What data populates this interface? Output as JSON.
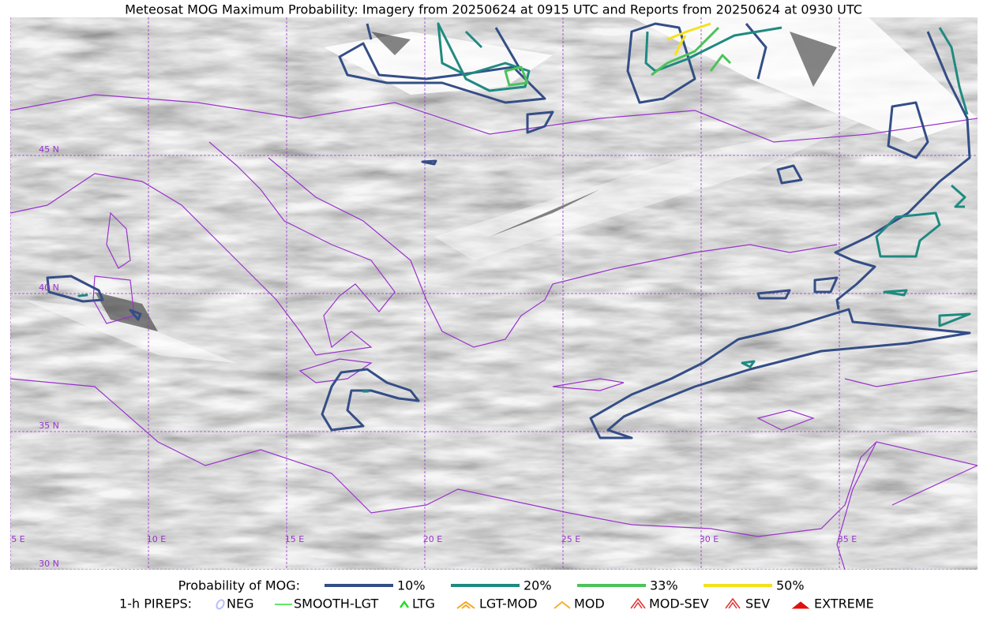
{
  "title": "Meteosat MOG Maximum Probability: Imagery from 20250624 at 0915 UTC and Reports from 20250624 at 0930 UTC",
  "map": {
    "lat_labels": [
      "45 N",
      "40 N",
      "35 N",
      "30 N"
    ],
    "lon_labels": [
      "5 E",
      "10 E",
      "15 E",
      "20 E",
      "25 E",
      "30 E",
      "35 E"
    ],
    "grid_color": "#9933cc",
    "coast_color": "#9933cc"
  },
  "legend": {
    "probability": {
      "label": "Probability of MOG:",
      "items": [
        {
          "label": "10%",
          "color": "#344e86"
        },
        {
          "label": "20%",
          "color": "#1f8a80"
        },
        {
          "label": "33%",
          "color": "#4cc25a"
        },
        {
          "label": "50%",
          "color": "#f5e11a"
        }
      ]
    },
    "pireps": {
      "label": "1-h PIREPS:",
      "items": [
        {
          "label": "NEG",
          "color": "#b8bcff"
        },
        {
          "label": "SMOOTH-LGT",
          "color": "#33dd33"
        },
        {
          "label": "LTG",
          "color": "#22dd22"
        },
        {
          "label": "LGT-MOD",
          "color": "#f5a623"
        },
        {
          "label": "MOD",
          "color": "#f5b030"
        },
        {
          "label": "MOD-SEV",
          "color": "#e03030"
        },
        {
          "label": "SEV",
          "color": "#e03030"
        },
        {
          "label": "EXTREME",
          "color": "#e01010"
        }
      ]
    }
  }
}
